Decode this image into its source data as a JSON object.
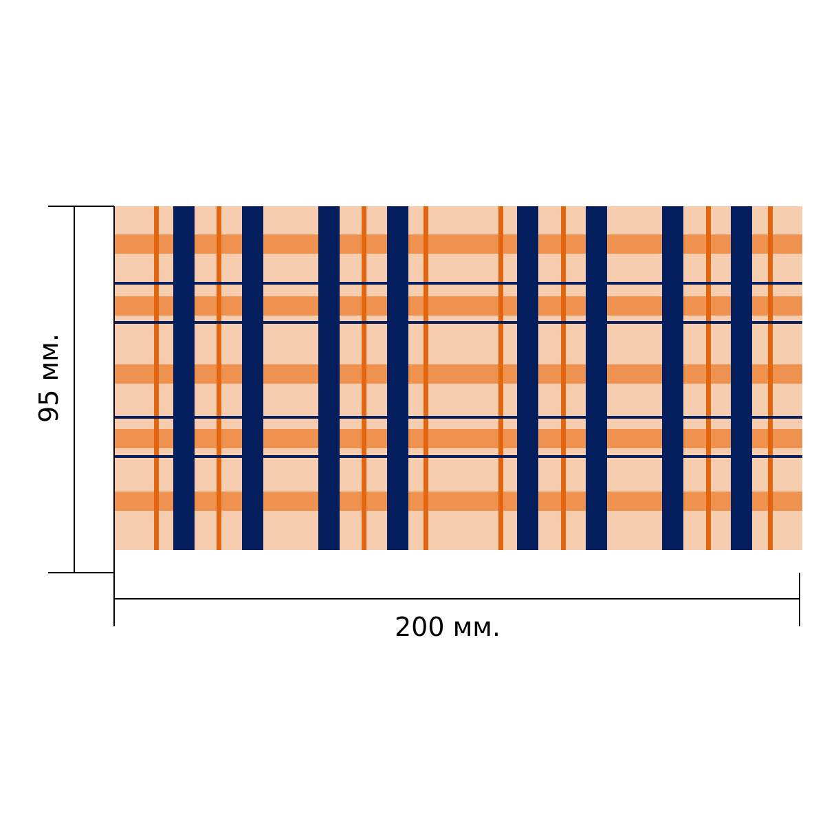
{
  "dimensions": {
    "height_label": "95 мм.",
    "width_label": "200 мм."
  },
  "pattern": {
    "name": "plaid",
    "colors": {
      "base": "#F7CDB0",
      "orange_band": "#EF914F",
      "orange_thin": "#E2650F",
      "navy": "#041E5E",
      "dimension_line": "#000000"
    }
  }
}
